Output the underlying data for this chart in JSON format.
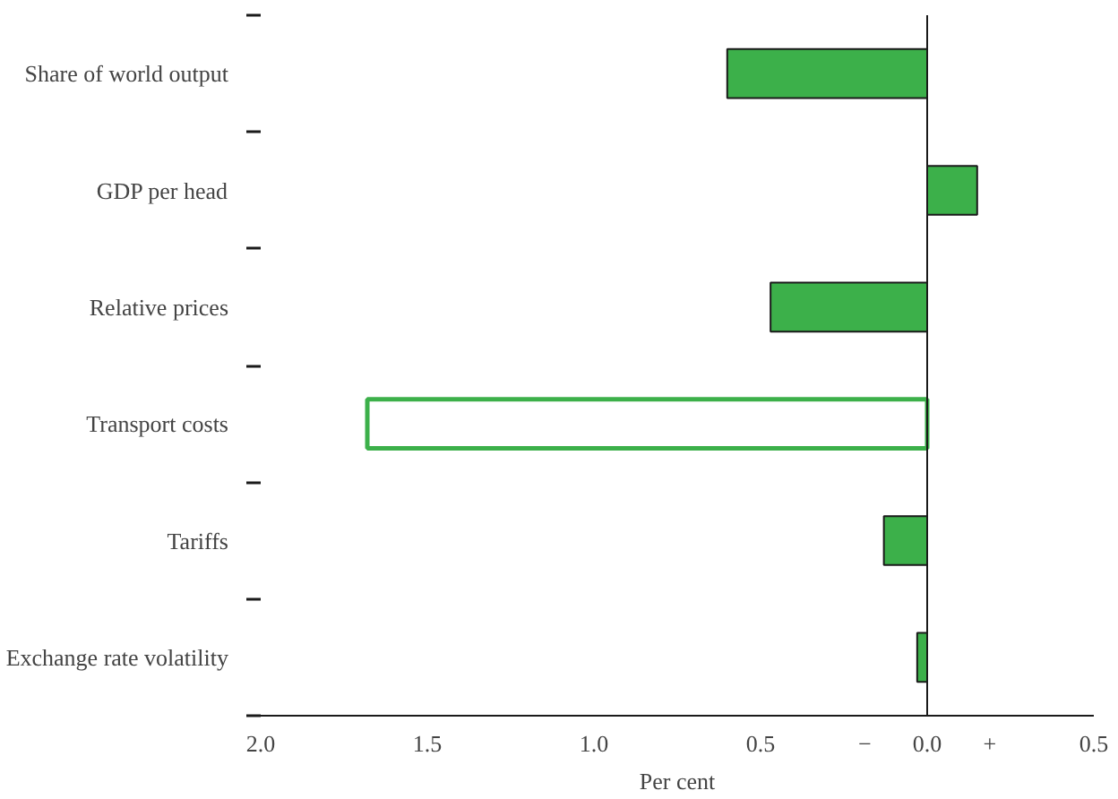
{
  "chart_data": {
    "type": "bar",
    "orientation": "horizontal",
    "xlabel": "Per cent",
    "categories": [
      "Share of world output",
      "GDP per head",
      "Relative prices",
      "Transport costs",
      "Tariffs",
      "Exchange rate volatility"
    ],
    "values": [
      -0.6,
      0.15,
      -0.47,
      -1.68,
      -0.13,
      -0.03
    ],
    "colors": [
      "#3cb04a",
      "#3cb04a",
      "#3cb04a",
      "#ffffff",
      "#3cb04a",
      "#3cb04a"
    ],
    "xlim": [
      -2.0,
      0.5
    ],
    "xticks": [
      {
        "value": -2.0,
        "label": "2.0"
      },
      {
        "value": -1.5,
        "label": "1.5"
      },
      {
        "value": -1.0,
        "label": "1.0"
      },
      {
        "value": -0.5,
        "label": "0.5"
      },
      {
        "value": 0.0,
        "label": "0.0"
      },
      {
        "value": 0.5,
        "label": "0.5"
      }
    ],
    "ref_lines": [
      {
        "axis": "x",
        "value": 0.0,
        "label": null,
        "color": "#1a1a1a"
      }
    ],
    "annotations": [
      "−",
      "+"
    ],
    "grid": false
  }
}
